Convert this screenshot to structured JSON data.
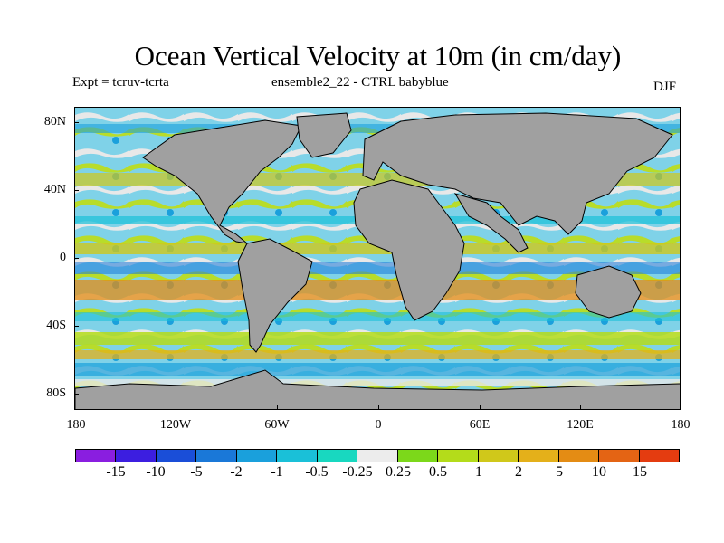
{
  "title": "Ocean Vertical Velocity at 10m (in cm/day)",
  "subtitle_left": "Expt = tcruv-tcrta",
  "subtitle_center": "ensemble2_22 - CTRL babyblue",
  "season": "DJF",
  "map": {
    "land_color": "#a0a0a0",
    "y_axis_labels": [
      "80N",
      "40N",
      "0",
      "40S",
      "80S"
    ],
    "x_axis_labels": [
      "180",
      "120W",
      "60W",
      "0",
      "60E",
      "120E",
      "180"
    ]
  },
  "colorbar": {
    "colors": [
      "#8a1ee0",
      "#3c1ee0",
      "#1a4ed8",
      "#1a78d8",
      "#1aa0dc",
      "#1ac0d8",
      "#18d8c0",
      "#ececec",
      "#7cd81a",
      "#b4dc1a",
      "#d0c81a",
      "#e4b01a",
      "#e48c14",
      "#e46414",
      "#e43c10"
    ],
    "labels": [
      "-15",
      "-10",
      "-5",
      "-2",
      "-1",
      "-0.5",
      "-0.25",
      "0.25",
      "0.5",
      "1",
      "2",
      "5",
      "10",
      "15"
    ]
  }
}
